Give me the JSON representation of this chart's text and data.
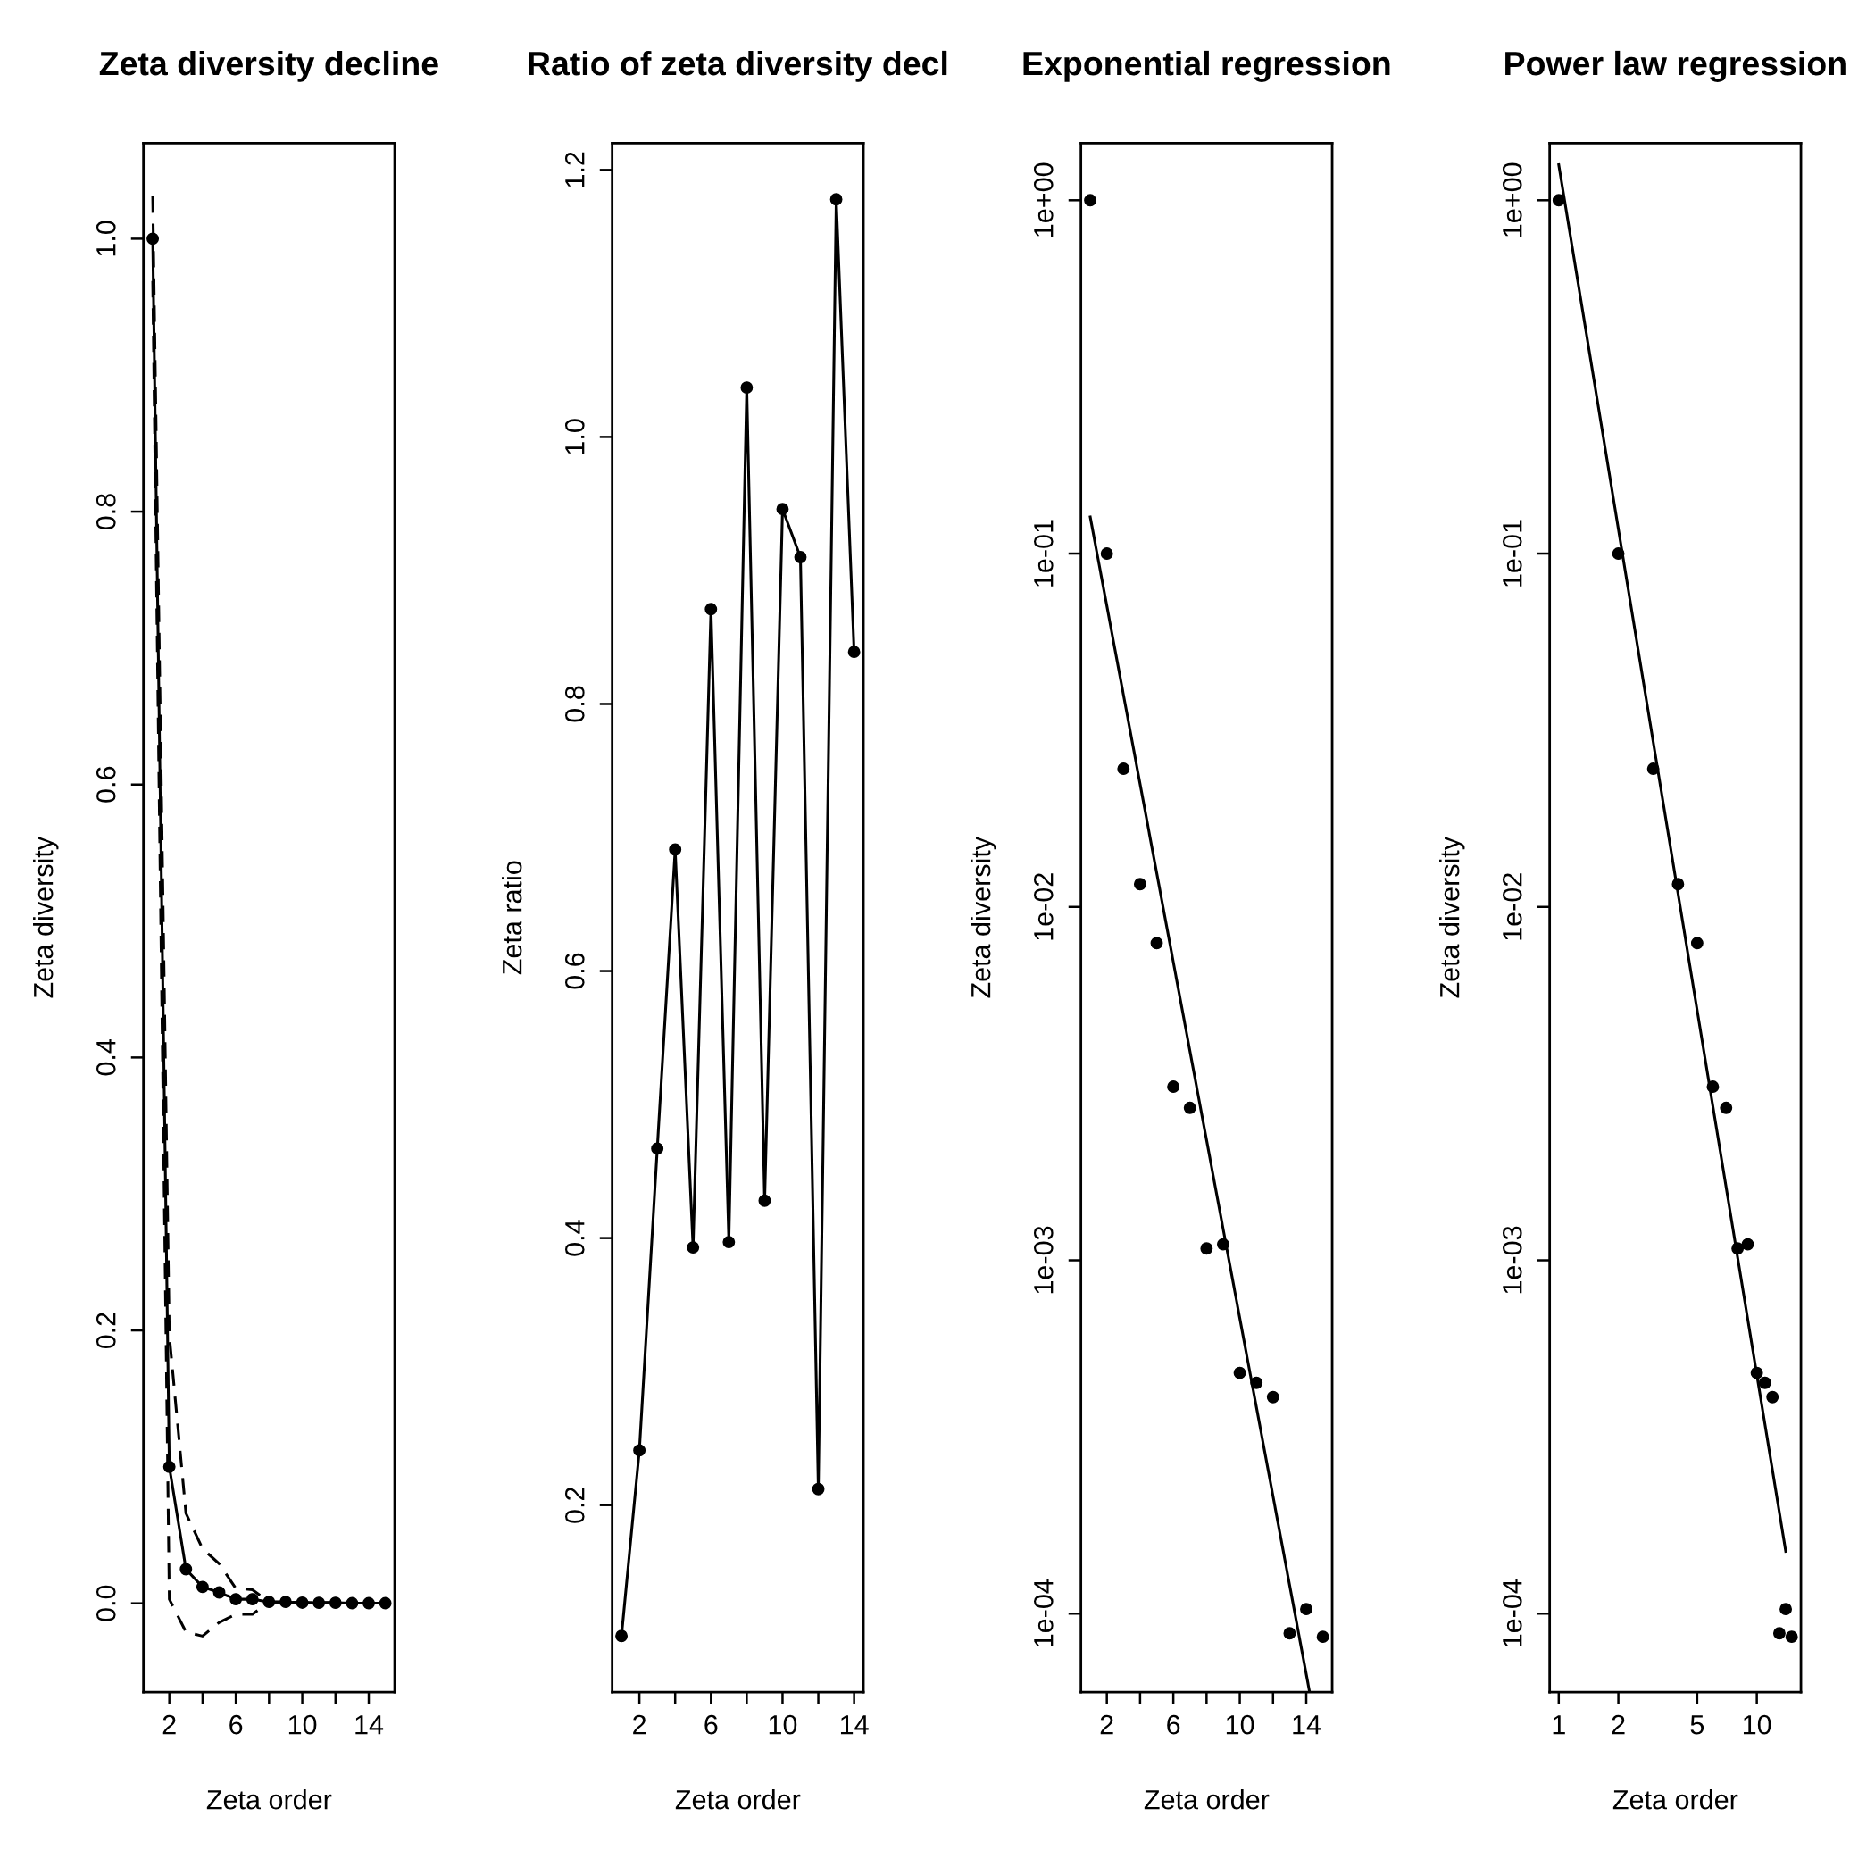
{
  "chart_data": [
    {
      "type": "line",
      "title": "Zeta diversity decline",
      "xlabel": "Zeta order",
      "ylabel": "Zeta diversity",
      "x": [
        1,
        2,
        3,
        4,
        5,
        6,
        7,
        8,
        9,
        10,
        11,
        12,
        13,
        14,
        15
      ],
      "series": [
        {
          "color": "#000000",
          "marker": "circle",
          "line_style": "solid",
          "values": [
            1.0,
            0.1,
            0.025,
            0.012,
            0.008,
            0.003,
            0.003,
            0.001,
            0.001,
            0.0005,
            0.0004,
            0.0004,
            0.0001,
            0.0001,
            0.0001
          ]
        },
        {
          "color": "#000000",
          "marker": "none",
          "line_style": "dashed",
          "values": [
            1.031,
            0.196,
            0.066,
            0.04,
            0.029,
            0.011,
            0.01,
            0.001,
            0.001,
            0.0005,
            0.0004,
            0.0004,
            0.0001,
            0.0001,
            0.0001
          ]
        },
        {
          "color": "#000000",
          "marker": "none",
          "line_style": "dashed",
          "values": [
            0.969,
            0.003,
            -0.021,
            -0.024,
            -0.014,
            -0.008,
            -0.008,
            0.001,
            0.001,
            0.0005,
            0.0004,
            0.0004,
            0.0001,
            0.0001,
            0.0001
          ]
        }
      ],
      "xlim": [
        0.44,
        15.56
      ],
      "ylim": [
        -0.065,
        1.07
      ],
      "xticks": [
        2,
        {
          "value": 4,
          "label": null
        },
        6,
        {
          "value": 8,
          "label": null
        },
        10,
        {
          "value": 12,
          "label": null
        },
        14
      ],
      "yticks": [
        {
          "value": 0,
          "label": "0.0"
        },
        0.2,
        0.4,
        0.6,
        0.8,
        {
          "value": 1,
          "label": "1.0"
        }
      ],
      "grid": false,
      "legend": false
    },
    {
      "type": "line",
      "title": "Ratio of zeta diversity decl",
      "xlabel": "Zeta order",
      "ylabel": "Zeta ratio",
      "x": [
        1,
        2,
        3,
        4,
        5,
        6,
        7,
        8,
        9,
        10,
        11,
        12,
        13,
        14
      ],
      "series": [
        {
          "color": "#000000",
          "marker": "circle",
          "line_style": "solid",
          "values": [
            0.102,
            0.241,
            0.467,
            0.691,
            0.393,
            0.871,
            0.397,
            1.037,
            0.428,
            0.946,
            0.91,
            0.212,
            1.178,
            0.839
          ]
        }
      ],
      "xlim": [
        0.48,
        14.52
      ],
      "ylim": [
        0.06,
        1.22
      ],
      "xticks": [
        2,
        {
          "value": 4,
          "label": null
        },
        6,
        {
          "value": 8,
          "label": null
        },
        10,
        {
          "value": 12,
          "label": null
        },
        14
      ],
      "yticks": [
        0.2,
        0.4,
        0.6,
        0.8,
        {
          "value": 1,
          "label": "1.0"
        },
        1.2
      ],
      "grid": false,
      "legend": false
    },
    {
      "type": "scatter",
      "title": "Exponential regression",
      "xlabel": "Zeta order",
      "ylabel": "Zeta diversity",
      "x": [
        1,
        2,
        3,
        4,
        5,
        6,
        7,
        8,
        9,
        10,
        11,
        12,
        13,
        14,
        15
      ],
      "log": "y",
      "series": [
        {
          "color": "#000000",
          "marker": "circle",
          "values": [
            1.0,
            0.1,
            0.0246,
            0.0116,
            0.0079,
            0.0031,
            0.0027,
            0.00108,
            0.00111,
            0.00048,
            0.00045,
            0.00041,
            8.8e-05,
            0.000103,
            8.6e-05
          ]
        },
        {
          "type": "line",
          "color": "#000000",
          "marker": "none",
          "line_style": "solid",
          "x": [
            1,
            14.2
          ],
          "values": [
            0.127,
            6e-05
          ]
        }
      ],
      "xlim": [
        0.44,
        15.56
      ],
      "ylim": [
        6e-05,
        1.45
      ],
      "xticks": [
        2,
        {
          "value": 4,
          "label": null
        },
        6,
        {
          "value": 8,
          "label": null
        },
        10,
        {
          "value": 12,
          "label": null
        },
        14
      ],
      "yticks": [
        {
          "value": 1,
          "label": "1e+00"
        },
        {
          "value": 0.1,
          "label": "1e-01"
        },
        {
          "value": 0.01,
          "label": "1e-02"
        },
        {
          "value": 0.001,
          "label": "1e-03"
        },
        {
          "value": 0.0001,
          "label": "1e-04"
        }
      ],
      "grid": false,
      "legend": false
    },
    {
      "type": "scatter",
      "title": "Power law regression",
      "xlabel": "Zeta order",
      "ylabel": "Zeta diversity",
      "x": [
        1,
        2,
        3,
        4,
        5,
        6,
        7,
        8,
        9,
        10,
        11,
        12,
        13,
        14,
        15
      ],
      "log": "xy",
      "series": [
        {
          "color": "#000000",
          "marker": "circle",
          "values": [
            1.0,
            0.1,
            0.0246,
            0.0116,
            0.0079,
            0.0031,
            0.0027,
            0.00108,
            0.00111,
            0.00048,
            0.00045,
            0.00041,
            8.8e-05,
            0.000103,
            8.6e-05
          ]
        },
        {
          "type": "line",
          "color": "#000000",
          "marker": "none",
          "line_style": "solid",
          "x": [
            1,
            14
          ],
          "values": [
            1.26,
            0.00015
          ]
        }
      ],
      "xlim": [
        0.9,
        16.7
      ],
      "ylim": [
        6e-05,
        1.45
      ],
      "xticks": [
        1,
        2,
        5,
        10
      ],
      "yticks": [
        {
          "value": 1,
          "label": "1e+00"
        },
        {
          "value": 0.1,
          "label": "1e-01"
        },
        {
          "value": 0.01,
          "label": "1e-02"
        },
        {
          "value": 0.001,
          "label": "1e-03"
        },
        {
          "value": 0.0001,
          "label": "1e-04"
        }
      ],
      "grid": false,
      "legend": false
    }
  ]
}
